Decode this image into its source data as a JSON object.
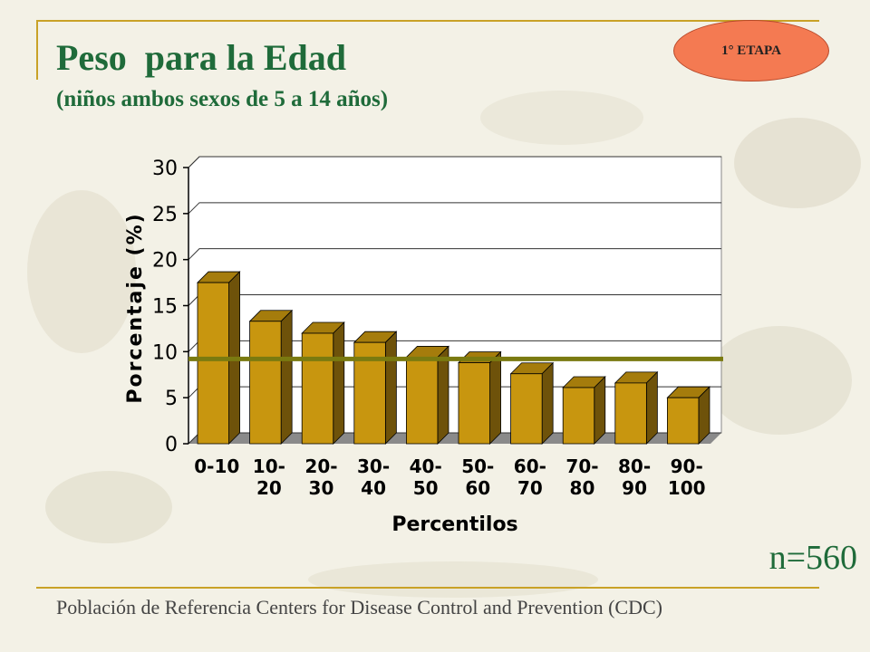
{
  "slide": {
    "title": "Peso  para la Edad",
    "subtitle": "(niños ambos sexos de 5 a 14 años)",
    "badge": "1° ETAPA",
    "sample_size": "n=560",
    "footer": "Población de Referencia Centers for Disease Control and Prevention (CDC)"
  },
  "colors": {
    "title": "#1f6b3a",
    "badge": "#f47a52",
    "bar_front": "#c8960f",
    "bar_side": "#6e520a",
    "bar_top": "#a57c0c",
    "reference_line": "#7a7a10",
    "accent_line": "#c9a227"
  },
  "chart_data": {
    "type": "bar",
    "categories": [
      "0-10",
      "10-\n20",
      "20-\n30",
      "30-\n40",
      "40-\n50",
      "50-\n60",
      "60-\n70",
      "70-\n80",
      "80-\n90",
      "90-\n100"
    ],
    "values": [
      17.5,
      13.3,
      12.0,
      11.0,
      9.4,
      8.8,
      7.6,
      6.1,
      6.6,
      5.0
    ],
    "xlabel": "Percentilos",
    "ylabel": "Porcentaje (%)",
    "ylim": [
      0,
      30
    ],
    "yticks": [
      0,
      5,
      10,
      15,
      20,
      25,
      30
    ],
    "reference_line": 10,
    "grid": true
  }
}
